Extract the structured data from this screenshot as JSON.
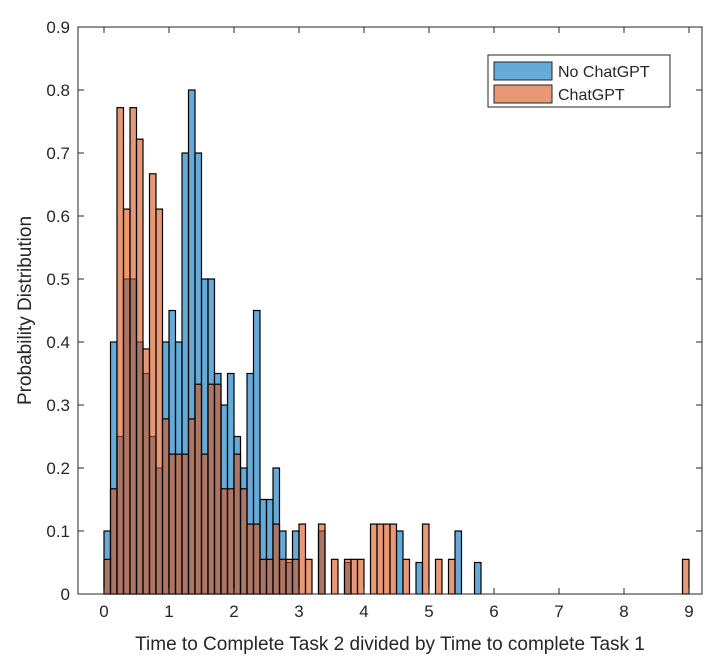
{
  "chart_data": {
    "type": "bar",
    "subtype": "overlaid histogram",
    "title": "",
    "xlabel": "Time to Complete Task 2 divided by Time to complete Task 1",
    "ylabel": "Probability Distribution",
    "xlim": [
      -0.4,
      9.2
    ],
    "ylim": [
      0,
      0.9
    ],
    "bin_width": 0.1,
    "xticks": [
      0,
      1,
      2,
      3,
      4,
      5,
      6,
      7,
      8,
      9
    ],
    "yticks": [
      0,
      0.1,
      0.2,
      0.3,
      0.4,
      0.5,
      0.6,
      0.7,
      0.8,
      0.9
    ],
    "grid": false,
    "legend_position": "top-right",
    "series": [
      {
        "name": "No ChatGPT",
        "color": "#0072BD",
        "bins": [
          [
            0.0,
            0.1
          ],
          [
            0.1,
            0.4
          ],
          [
            0.2,
            0.25
          ],
          [
            0.3,
            0.5
          ],
          [
            0.4,
            0.5
          ],
          [
            0.5,
            0.4
          ],
          [
            0.6,
            0.35
          ],
          [
            0.7,
            0.25
          ],
          [
            0.8,
            0.2
          ],
          [
            0.9,
            0.4
          ],
          [
            1.0,
            0.45
          ],
          [
            1.1,
            0.4
          ],
          [
            1.2,
            0.7
          ],
          [
            1.3,
            0.8
          ],
          [
            1.4,
            0.7
          ],
          [
            1.5,
            0.5
          ],
          [
            1.6,
            0.5
          ],
          [
            1.7,
            0.35
          ],
          [
            1.8,
            0.3
          ],
          [
            1.9,
            0.35
          ],
          [
            2.0,
            0.25
          ],
          [
            2.1,
            0.2
          ],
          [
            2.2,
            0.35
          ],
          [
            2.3,
            0.45
          ],
          [
            2.4,
            0.15
          ],
          [
            2.5,
            0.15
          ],
          [
            2.6,
            0.2
          ],
          [
            2.7,
            0.1
          ],
          [
            2.8,
            0.05
          ],
          [
            2.9,
            0.1
          ],
          [
            3.3,
            0.1
          ],
          [
            3.7,
            0.05
          ],
          [
            4.5,
            0.1
          ],
          [
            4.8,
            0.05
          ],
          [
            5.4,
            0.1
          ],
          [
            5.7,
            0.05
          ]
        ]
      },
      {
        "name": "ChatGPT",
        "color": "#D95319",
        "bins": [
          [
            0.0,
            0.055
          ],
          [
            0.1,
            0.167
          ],
          [
            0.2,
            0.772
          ],
          [
            0.3,
            0.611
          ],
          [
            0.4,
            0.772
          ],
          [
            0.5,
            0.722
          ],
          [
            0.6,
            0.389
          ],
          [
            0.7,
            0.667
          ],
          [
            0.8,
            0.611
          ],
          [
            0.9,
            0.278
          ],
          [
            1.0,
            0.222
          ],
          [
            1.1,
            0.222
          ],
          [
            1.2,
            0.222
          ],
          [
            1.3,
            0.278
          ],
          [
            1.4,
            0.333
          ],
          [
            1.5,
            0.222
          ],
          [
            1.6,
            0.333
          ],
          [
            1.7,
            0.333
          ],
          [
            1.8,
            0.167
          ],
          [
            1.9,
            0.167
          ],
          [
            2.0,
            0.222
          ],
          [
            2.1,
            0.167
          ],
          [
            2.2,
            0.111
          ],
          [
            2.3,
            0.111
          ],
          [
            2.4,
            0.055
          ],
          [
            2.5,
            0.055
          ],
          [
            2.6,
            0.111
          ],
          [
            2.7,
            0.055
          ],
          [
            2.8,
            0.055
          ],
          [
            2.9,
            0.055
          ],
          [
            3.0,
            0.111
          ],
          [
            3.1,
            0.055
          ],
          [
            3.3,
            0.111
          ],
          [
            3.5,
            0.055
          ],
          [
            3.7,
            0.055
          ],
          [
            3.8,
            0.055
          ],
          [
            3.9,
            0.055
          ],
          [
            4.1,
            0.111
          ],
          [
            4.2,
            0.111
          ],
          [
            4.3,
            0.111
          ],
          [
            4.4,
            0.111
          ],
          [
            4.6,
            0.055
          ],
          [
            4.9,
            0.111
          ],
          [
            5.1,
            0.055
          ],
          [
            5.3,
            0.055
          ],
          [
            8.9,
            0.055
          ]
        ]
      }
    ]
  }
}
